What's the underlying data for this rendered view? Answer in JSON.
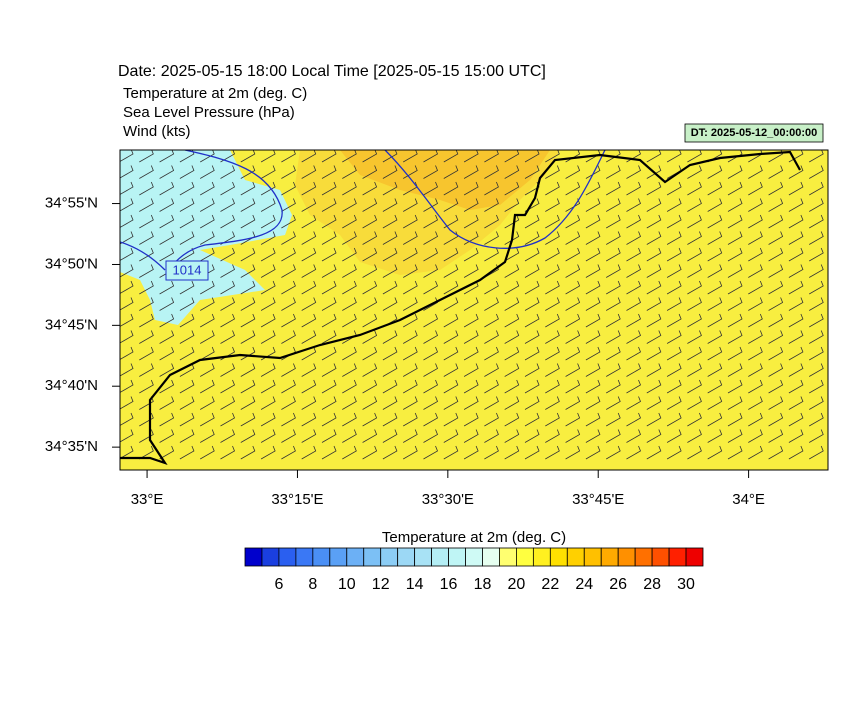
{
  "header": {
    "date": "Date: 2025-05-15  18:00 Local Time [2025-05-15  15:00 UTC]",
    "fields": [
      "Temperature at 2m   (deg. C)",
      "Sea Level Pressure   (hPa)",
      "Wind   (kts)"
    ],
    "dt_label": "DT: 2025-05-12_00:00:00"
  },
  "map": {
    "xlim": [
      32.955,
      34.132
    ],
    "ylim": [
      34.552,
      34.99
    ],
    "xticks": [
      {
        "value": 33,
        "label": "33°E"
      },
      {
        "value": 33.25,
        "label": "33°15'E"
      },
      {
        "value": 33.5,
        "label": "33°30'E"
      },
      {
        "value": 33.75,
        "label": "33°45'E"
      },
      {
        "value": 34,
        "label": "34°E"
      }
    ],
    "yticks": [
      {
        "value": 34.9167,
        "label": "34°55'N"
      },
      {
        "value": 34.8333,
        "label": "34°50'N"
      },
      {
        "value": 34.75,
        "label": "34°45'N"
      },
      {
        "value": 34.6667,
        "label": "34°40'N"
      },
      {
        "value": 34.5833,
        "label": "34°35'N"
      }
    ],
    "isobar_label": "1014"
  },
  "colorbar": {
    "title": "Temperature at 2m  (deg. C)",
    "lim": [
      4,
      31
    ],
    "ticks": [
      6,
      8,
      10,
      12,
      14,
      16,
      18,
      20,
      22,
      24,
      26,
      28,
      30
    ],
    "colors": [
      "#0000cc",
      "#1a3fe0",
      "#2a5ff0",
      "#3a78f5",
      "#4a8ff5",
      "#5aa0f5",
      "#6cb0f5",
      "#7cc0f5",
      "#8ccdf5",
      "#9cd8f5",
      "#a8e2f5",
      "#b4eef5",
      "#bff5f5",
      "#cffaf5",
      "#e6fff0",
      "#ffff70",
      "#ffff40",
      "#fff020",
      "#ffe000",
      "#ffd000",
      "#ffc000",
      "#ffaa00",
      "#ff9000",
      "#ff7000",
      "#ff5000",
      "#ff2000",
      "#ee0000"
    ]
  }
}
